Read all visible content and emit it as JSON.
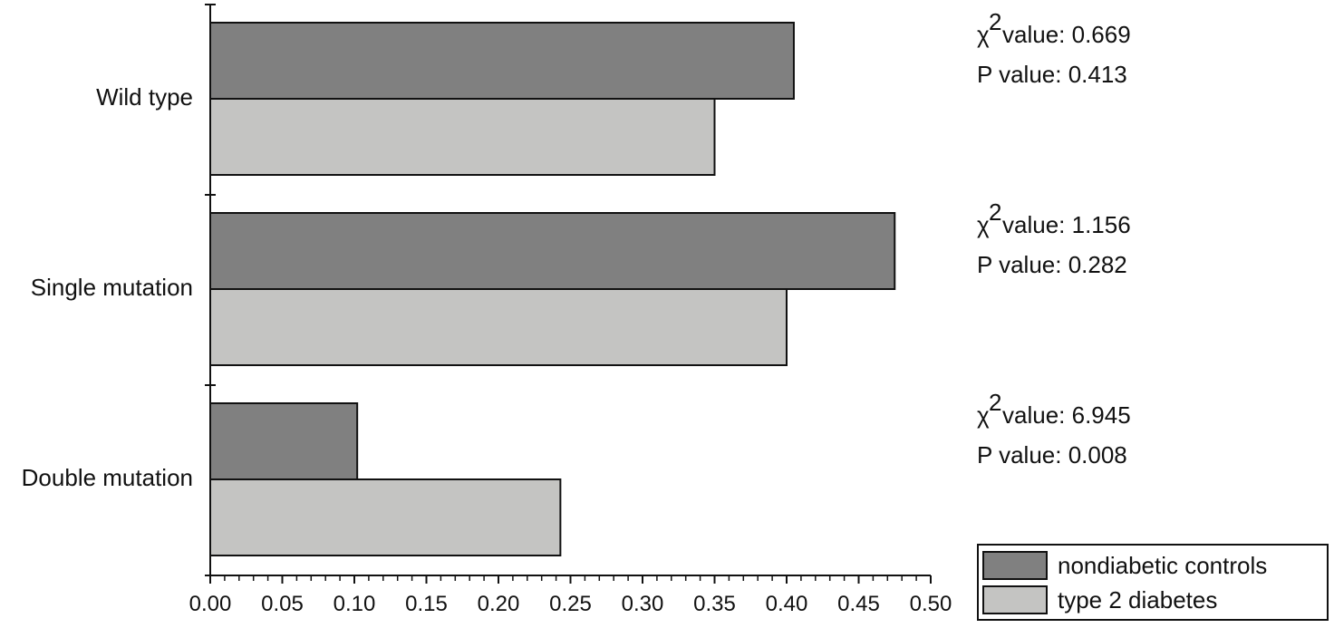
{
  "chart_data": {
    "type": "bar",
    "orientation": "horizontal",
    "categories": [
      "Wild type",
      "Single mutation",
      "Double mutation"
    ],
    "series": [
      {
        "name": "nondiabetic controls",
        "values": [
          0.405,
          0.475,
          0.102
        ]
      },
      {
        "name": "type 2 diabetes",
        "values": [
          0.35,
          0.4,
          0.243
        ]
      }
    ],
    "colors": {
      "nondiabetic controls": "#808080",
      "type 2 diabetes": "#c4c4c2"
    },
    "xlim": [
      0,
      0.5
    ],
    "x_ticks": [
      "0.00",
      "0.05",
      "0.10",
      "0.15",
      "0.20",
      "0.25",
      "0.30",
      "0.35",
      "0.40",
      "0.45",
      "0.50"
    ],
    "x_minor_tick_step": 0.01,
    "xlabel": "",
    "ylabel": "",
    "title": "",
    "grid": false,
    "legend": {
      "position": "bottom-right",
      "entries": [
        "nondiabetic controls",
        "type 2 diabetes"
      ]
    },
    "annotations": [
      {
        "category": "Wild type",
        "chi_label": "value: 0.669",
        "p_label": "P value: 0.413"
      },
      {
        "category": "Single mutation",
        "chi_label": "value: 1.156",
        "p_label": "P value: 0.282"
      },
      {
        "category": "Double mutation",
        "chi_label": "value: 6.945",
        "p_label": "P value: 0.008"
      }
    ],
    "chi_symbol": "χ",
    "chi_superscript": "2"
  }
}
